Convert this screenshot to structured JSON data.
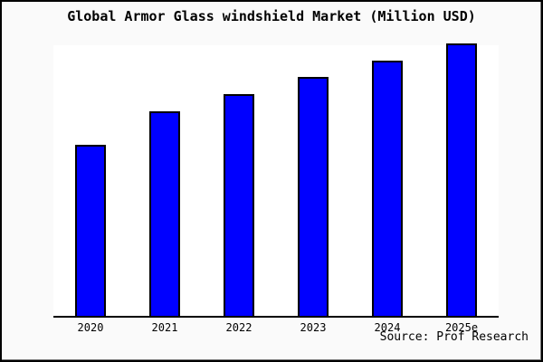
{
  "header": {
    "title": "Global Armor Glass windshield Market (Million USD)"
  },
  "source": {
    "label": "Source: Prof Research"
  },
  "colors": {
    "bar_fill": "#0000ff",
    "bar_border": "#000000",
    "background": "#fafafa",
    "plot_background": "#ffffff",
    "axis": "#000000",
    "text": "#000000"
  },
  "chart_data": {
    "type": "bar",
    "title": "Global Armor Glass windshield Market (Million USD)",
    "categories": [
      "2020",
      "2021",
      "2022",
      "2023",
      "2024",
      "2025e"
    ],
    "values": [
      189,
      226,
      245,
      264,
      282,
      301
    ],
    "units": "unlabeled relative units (bar heights in px; no y-axis scale shown)",
    "values_relative_2020_100": [
      100,
      119.6,
      129.6,
      139.7,
      149.2,
      159.3
    ],
    "xlabel": "",
    "ylabel": "",
    "ylim": [
      0,
      301
    ],
    "y_axis_visible": false,
    "gridlines": false,
    "legend": false,
    "annotations": [
      "Source: Prof Research"
    ]
  }
}
